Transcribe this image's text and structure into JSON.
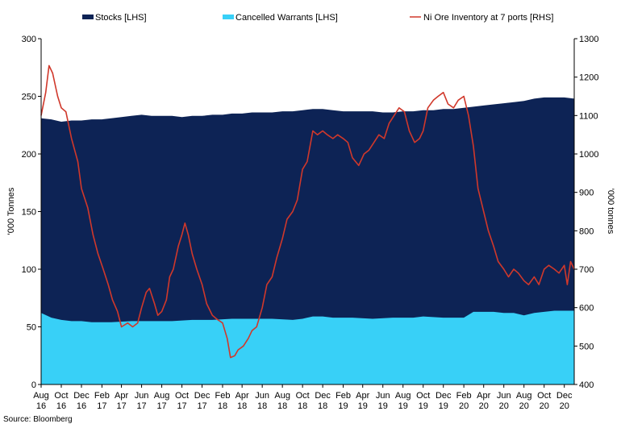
{
  "chart_data": {
    "type": "area",
    "colors": {
      "stocks": "#0d2355",
      "warrants": "#38d0f7",
      "ni_ore": "#d0382b"
    },
    "legend": [
      {
        "key": "stocks",
        "label": "Stocks [LHS]"
      },
      {
        "key": "warrants",
        "label": "Cancelled Warrants [LHS]"
      },
      {
        "key": "ni_ore",
        "label": "Ni Ore Inventory at 7 ports [RHS]"
      }
    ],
    "x_ticks": [
      [
        "Aug",
        "16"
      ],
      [
        "Oct",
        "16"
      ],
      [
        "Dec",
        "16"
      ],
      [
        "Feb",
        "17"
      ],
      [
        "Apr",
        "17"
      ],
      [
        "Jun",
        "17"
      ],
      [
        "Aug",
        "17"
      ],
      [
        "Oct",
        "17"
      ],
      [
        "Dec",
        "17"
      ],
      [
        "Feb",
        "18"
      ],
      [
        "Apr",
        "18"
      ],
      [
        "Jun",
        "18"
      ],
      [
        "Aug",
        "18"
      ],
      [
        "Oct",
        "18"
      ],
      [
        "Dec",
        "18"
      ],
      [
        "Feb",
        "19"
      ],
      [
        "Apr",
        "19"
      ],
      [
        "Jun",
        "19"
      ],
      [
        "Aug",
        "19"
      ],
      [
        "Oct",
        "19"
      ],
      [
        "Dec",
        "19"
      ],
      [
        "Feb",
        "20"
      ],
      [
        "Apr",
        "20"
      ],
      [
        "Jun",
        "20"
      ],
      [
        "Aug",
        "20"
      ],
      [
        "Oct",
        "20"
      ],
      [
        "Dec",
        "20"
      ]
    ],
    "y_left": {
      "label": "'000 Tonnes",
      "min": 0,
      "max": 300,
      "ticks": [
        0,
        50,
        100,
        150,
        200,
        250,
        300
      ]
    },
    "y_right": {
      "label": "'000 tonnes",
      "min": 400,
      "max": 1300,
      "ticks": [
        400,
        500,
        600,
        700,
        800,
        900,
        1000,
        1100,
        1200,
        1300
      ]
    },
    "series": [
      {
        "name": "Stocks [LHS]",
        "axis": "left",
        "type": "area",
        "points": [
          [
            "2016-08-01",
            231
          ],
          [
            "2016-09-01",
            230
          ],
          [
            "2016-10-01",
            228
          ],
          [
            "2016-11-01",
            229
          ],
          [
            "2016-12-01",
            229
          ],
          [
            "2017-01-01",
            230
          ],
          [
            "2017-02-01",
            230
          ],
          [
            "2017-03-01",
            231
          ],
          [
            "2017-04-01",
            232
          ],
          [
            "2017-05-01",
            233
          ],
          [
            "2017-06-01",
            234
          ],
          [
            "2017-07-01",
            233
          ],
          [
            "2017-08-01",
            233
          ],
          [
            "2017-09-01",
            233
          ],
          [
            "2017-10-01",
            232
          ],
          [
            "2017-11-01",
            233
          ],
          [
            "2017-12-01",
            233
          ],
          [
            "2018-01-01",
            234
          ],
          [
            "2018-02-01",
            234
          ],
          [
            "2018-03-01",
            235
          ],
          [
            "2018-04-01",
            235
          ],
          [
            "2018-05-01",
            236
          ],
          [
            "2018-06-01",
            236
          ],
          [
            "2018-07-01",
            236
          ],
          [
            "2018-08-01",
            237
          ],
          [
            "2018-09-01",
            237
          ],
          [
            "2018-10-01",
            238
          ],
          [
            "2018-11-01",
            239
          ],
          [
            "2018-12-01",
            239
          ],
          [
            "2019-01-01",
            238
          ],
          [
            "2019-02-01",
            237
          ],
          [
            "2019-03-01",
            237
          ],
          [
            "2019-04-01",
            237
          ],
          [
            "2019-05-01",
            237
          ],
          [
            "2019-06-01",
            236
          ],
          [
            "2019-07-01",
            236
          ],
          [
            "2019-08-01",
            237
          ],
          [
            "2019-09-01",
            237
          ],
          [
            "2019-10-01",
            238
          ],
          [
            "2019-11-01",
            238
          ],
          [
            "2019-12-01",
            239
          ],
          [
            "2020-01-01",
            239
          ],
          [
            "2020-02-01",
            240
          ],
          [
            "2020-03-01",
            241
          ],
          [
            "2020-04-01",
            242
          ],
          [
            "2020-05-01",
            243
          ],
          [
            "2020-06-01",
            244
          ],
          [
            "2020-07-01",
            245
          ],
          [
            "2020-08-01",
            246
          ],
          [
            "2020-09-01",
            248
          ],
          [
            "2020-10-01",
            249
          ],
          [
            "2020-11-01",
            249
          ],
          [
            "2020-12-01",
            249
          ],
          [
            "2020-12-31",
            248
          ]
        ]
      },
      {
        "name": "Cancelled Warrants [LHS]",
        "axis": "left",
        "type": "area",
        "points": [
          [
            "2016-08-01",
            62
          ],
          [
            "2016-09-01",
            58
          ],
          [
            "2016-10-01",
            56
          ],
          [
            "2016-11-01",
            55
          ],
          [
            "2016-12-01",
            55
          ],
          [
            "2017-01-01",
            54
          ],
          [
            "2017-03-01",
            54
          ],
          [
            "2017-05-01",
            55
          ],
          [
            "2017-07-01",
            55
          ],
          [
            "2017-09-01",
            55
          ],
          [
            "2017-11-01",
            56
          ],
          [
            "2018-01-01",
            56
          ],
          [
            "2018-03-01",
            57
          ],
          [
            "2018-05-01",
            57
          ],
          [
            "2018-07-01",
            57
          ],
          [
            "2018-09-01",
            56
          ],
          [
            "2018-10-01",
            57
          ],
          [
            "2018-11-01",
            59
          ],
          [
            "2018-12-01",
            59
          ],
          [
            "2019-01-01",
            58
          ],
          [
            "2019-03-01",
            58
          ],
          [
            "2019-05-01",
            57
          ],
          [
            "2019-07-01",
            58
          ],
          [
            "2019-09-01",
            58
          ],
          [
            "2019-10-01",
            59
          ],
          [
            "2019-12-01",
            58
          ],
          [
            "2020-01-01",
            58
          ],
          [
            "2020-02-01",
            58
          ],
          [
            "2020-03-01",
            63
          ],
          [
            "2020-05-01",
            63
          ],
          [
            "2020-06-01",
            62
          ],
          [
            "2020-07-01",
            62
          ],
          [
            "2020-08-01",
            60
          ],
          [
            "2020-09-01",
            62
          ],
          [
            "2020-10-01",
            63
          ],
          [
            "2020-11-01",
            64
          ],
          [
            "2020-12-01",
            64
          ],
          [
            "2020-12-31",
            64
          ]
        ]
      },
      {
        "name": "Ni Ore Inventory at 7 ports [RHS]",
        "axis": "right",
        "type": "line",
        "points": [
          [
            "2016-08-01",
            1100
          ],
          [
            "2016-08-15",
            1160
          ],
          [
            "2016-08-25",
            1230
          ],
          [
            "2016-09-05",
            1210
          ],
          [
            "2016-09-20",
            1150
          ],
          [
            "2016-10-01",
            1120
          ],
          [
            "2016-10-15",
            1110
          ],
          [
            "2016-11-01",
            1040
          ],
          [
            "2016-11-20",
            980
          ],
          [
            "2016-12-01",
            910
          ],
          [
            "2016-12-20",
            860
          ],
          [
            "2017-01-05",
            790
          ],
          [
            "2017-01-20",
            740
          ],
          [
            "2017-02-05",
            700
          ],
          [
            "2017-02-20",
            660
          ],
          [
            "2017-03-05",
            620
          ],
          [
            "2017-03-20",
            590
          ],
          [
            "2017-04-01",
            550
          ],
          [
            "2017-04-20",
            560
          ],
          [
            "2017-05-05",
            550
          ],
          [
            "2017-05-20",
            560
          ],
          [
            "2017-06-01",
            600
          ],
          [
            "2017-06-15",
            640
          ],
          [
            "2017-06-25",
            650
          ],
          [
            "2017-07-10",
            610
          ],
          [
            "2017-07-20",
            580
          ],
          [
            "2017-08-01",
            590
          ],
          [
            "2017-08-15",
            620
          ],
          [
            "2017-08-25",
            680
          ],
          [
            "2017-09-05",
            700
          ],
          [
            "2017-09-20",
            760
          ],
          [
            "2017-10-01",
            790
          ],
          [
            "2017-10-10",
            820
          ],
          [
            "2017-10-20",
            790
          ],
          [
            "2017-11-01",
            740
          ],
          [
            "2017-11-15",
            700
          ],
          [
            "2017-12-01",
            660
          ],
          [
            "2017-12-15",
            610
          ],
          [
            "2018-01-01",
            580
          ],
          [
            "2018-01-15",
            570
          ],
          [
            "2018-02-01",
            560
          ],
          [
            "2018-02-15",
            520
          ],
          [
            "2018-02-25",
            470
          ],
          [
            "2018-03-10",
            475
          ],
          [
            "2018-03-20",
            490
          ],
          [
            "2018-04-05",
            500
          ],
          [
            "2018-04-20",
            520
          ],
          [
            "2018-05-01",
            540
          ],
          [
            "2018-05-15",
            550
          ],
          [
            "2018-06-01",
            600
          ],
          [
            "2018-06-15",
            660
          ],
          [
            "2018-07-01",
            680
          ],
          [
            "2018-07-15",
            730
          ],
          [
            "2018-08-01",
            780
          ],
          [
            "2018-08-15",
            830
          ],
          [
            "2018-09-01",
            850
          ],
          [
            "2018-09-15",
            880
          ],
          [
            "2018-10-01",
            960
          ],
          [
            "2018-10-15",
            980
          ],
          [
            "2018-11-01",
            1060
          ],
          [
            "2018-11-15",
            1050
          ],
          [
            "2018-12-01",
            1060
          ],
          [
            "2018-12-15",
            1050
          ],
          [
            "2019-01-01",
            1040
          ],
          [
            "2019-01-15",
            1050
          ],
          [
            "2019-02-01",
            1040
          ],
          [
            "2019-02-15",
            1030
          ],
          [
            "2019-03-01",
            990
          ],
          [
            "2019-03-20",
            970
          ],
          [
            "2019-04-05",
            1000
          ],
          [
            "2019-04-20",
            1010
          ],
          [
            "2019-05-05",
            1030
          ],
          [
            "2019-05-20",
            1050
          ],
          [
            "2019-06-05",
            1040
          ],
          [
            "2019-06-20",
            1080
          ],
          [
            "2019-07-05",
            1100
          ],
          [
            "2019-07-20",
            1120
          ],
          [
            "2019-08-05",
            1110
          ],
          [
            "2019-08-20",
            1060
          ],
          [
            "2019-09-05",
            1030
          ],
          [
            "2019-09-20",
            1040
          ],
          [
            "2019-10-01",
            1060
          ],
          [
            "2019-10-15",
            1120
          ],
          [
            "2019-11-01",
            1140
          ],
          [
            "2019-11-15",
            1150
          ],
          [
            "2019-12-01",
            1160
          ],
          [
            "2019-12-15",
            1130
          ],
          [
            "2020-01-01",
            1120
          ],
          [
            "2020-01-15",
            1140
          ],
          [
            "2020-02-01",
            1150
          ],
          [
            "2020-02-15",
            1100
          ],
          [
            "2020-03-01",
            1020
          ],
          [
            "2020-03-15",
            910
          ],
          [
            "2020-04-01",
            850
          ],
          [
            "2020-04-15",
            800
          ],
          [
            "2020-05-01",
            760
          ],
          [
            "2020-05-15",
            720
          ],
          [
            "2020-06-01",
            700
          ],
          [
            "2020-06-15",
            680
          ],
          [
            "2020-07-01",
            700
          ],
          [
            "2020-07-15",
            690
          ],
          [
            "2020-08-01",
            670
          ],
          [
            "2020-08-15",
            660
          ],
          [
            "2020-09-01",
            680
          ],
          [
            "2020-09-15",
            660
          ],
          [
            "2020-10-01",
            700
          ],
          [
            "2020-10-15",
            710
          ],
          [
            "2020-11-01",
            700
          ],
          [
            "2020-11-15",
            690
          ],
          [
            "2020-12-01",
            710
          ],
          [
            "2020-12-10",
            660
          ],
          [
            "2020-12-20",
            720
          ],
          [
            "2020-12-31",
            700
          ]
        ]
      }
    ],
    "x_range": [
      "2016-08-01",
      "2020-12-31"
    ],
    "tick_dates": [
      "2016-08-01",
      "2016-10-01",
      "2016-12-01",
      "2017-02-01",
      "2017-04-01",
      "2017-06-01",
      "2017-08-01",
      "2017-10-01",
      "2017-12-01",
      "2018-02-01",
      "2018-04-01",
      "2018-06-01",
      "2018-08-01",
      "2018-10-01",
      "2018-12-01",
      "2019-02-01",
      "2019-04-01",
      "2019-06-01",
      "2019-08-01",
      "2019-10-01",
      "2019-12-01",
      "2020-02-01",
      "2020-04-01",
      "2020-06-01",
      "2020-08-01",
      "2020-10-01",
      "2020-12-01"
    ],
    "source": "Source: Bloomberg"
  }
}
